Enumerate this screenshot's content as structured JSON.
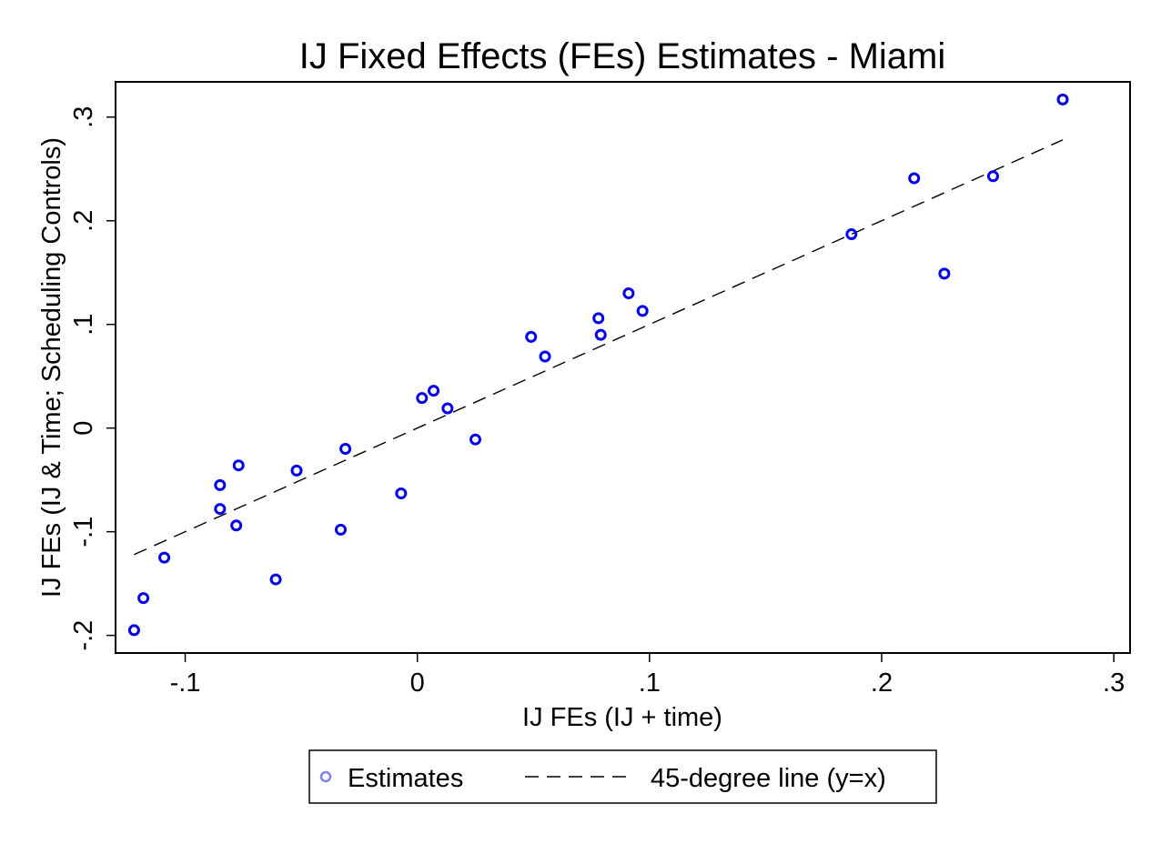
{
  "chart_data": {
    "type": "scatter",
    "title": "IJ Fixed Effects (FEs) Estimates - Miami",
    "xlabel": "IJ FEs (IJ + time)",
    "ylabel": "IJ FEs (IJ & Time; Scheduling Controls)",
    "xlim": [
      -0.13,
      0.307
    ],
    "ylim": [
      -0.217,
      0.334
    ],
    "x_ticks": [
      -0.1,
      0,
      0.1,
      0.2,
      0.3
    ],
    "x_tick_labels": [
      "-.1",
      "0",
      ".1",
      ".2",
      ".3"
    ],
    "y_ticks": [
      -0.2,
      -0.1,
      0,
      0.1,
      0.2,
      0.3
    ],
    "y_tick_labels": [
      "-.2",
      "-.1",
      "0",
      ".1",
      ".2",
      ".3"
    ],
    "grid": false,
    "legend_position": "bottom",
    "series": [
      {
        "name": "Estimates",
        "kind": "points",
        "color": "#0000ee",
        "points": [
          [
            -0.122,
            -0.195
          ],
          [
            -0.118,
            -0.164
          ],
          [
            -0.109,
            -0.125
          ],
          [
            -0.085,
            -0.055
          ],
          [
            -0.085,
            -0.078
          ],
          [
            -0.077,
            -0.036
          ],
          [
            -0.078,
            -0.094
          ],
          [
            -0.061,
            -0.146
          ],
          [
            -0.052,
            -0.041
          ],
          [
            -0.033,
            -0.098
          ],
          [
            -0.031,
            -0.02
          ],
          [
            -0.007,
            -0.063
          ],
          [
            0.002,
            0.029
          ],
          [
            0.007,
            0.036
          ],
          [
            0.013,
            0.019
          ],
          [
            0.025,
            -0.011
          ],
          [
            0.049,
            0.088
          ],
          [
            0.055,
            0.069
          ],
          [
            0.078,
            0.106
          ],
          [
            0.079,
            0.09
          ],
          [
            0.091,
            0.13
          ],
          [
            0.097,
            0.113
          ],
          [
            0.187,
            0.187
          ],
          [
            0.214,
            0.241
          ],
          [
            0.227,
            0.149
          ],
          [
            0.248,
            0.243
          ],
          [
            0.278,
            0.317
          ]
        ]
      },
      {
        "name": "45-degree line (y=x)",
        "kind": "line",
        "style": "dashed",
        "color": "#000000",
        "points": [
          [
            -0.122,
            -0.122
          ],
          [
            0.278,
            0.278
          ]
        ]
      }
    ]
  }
}
